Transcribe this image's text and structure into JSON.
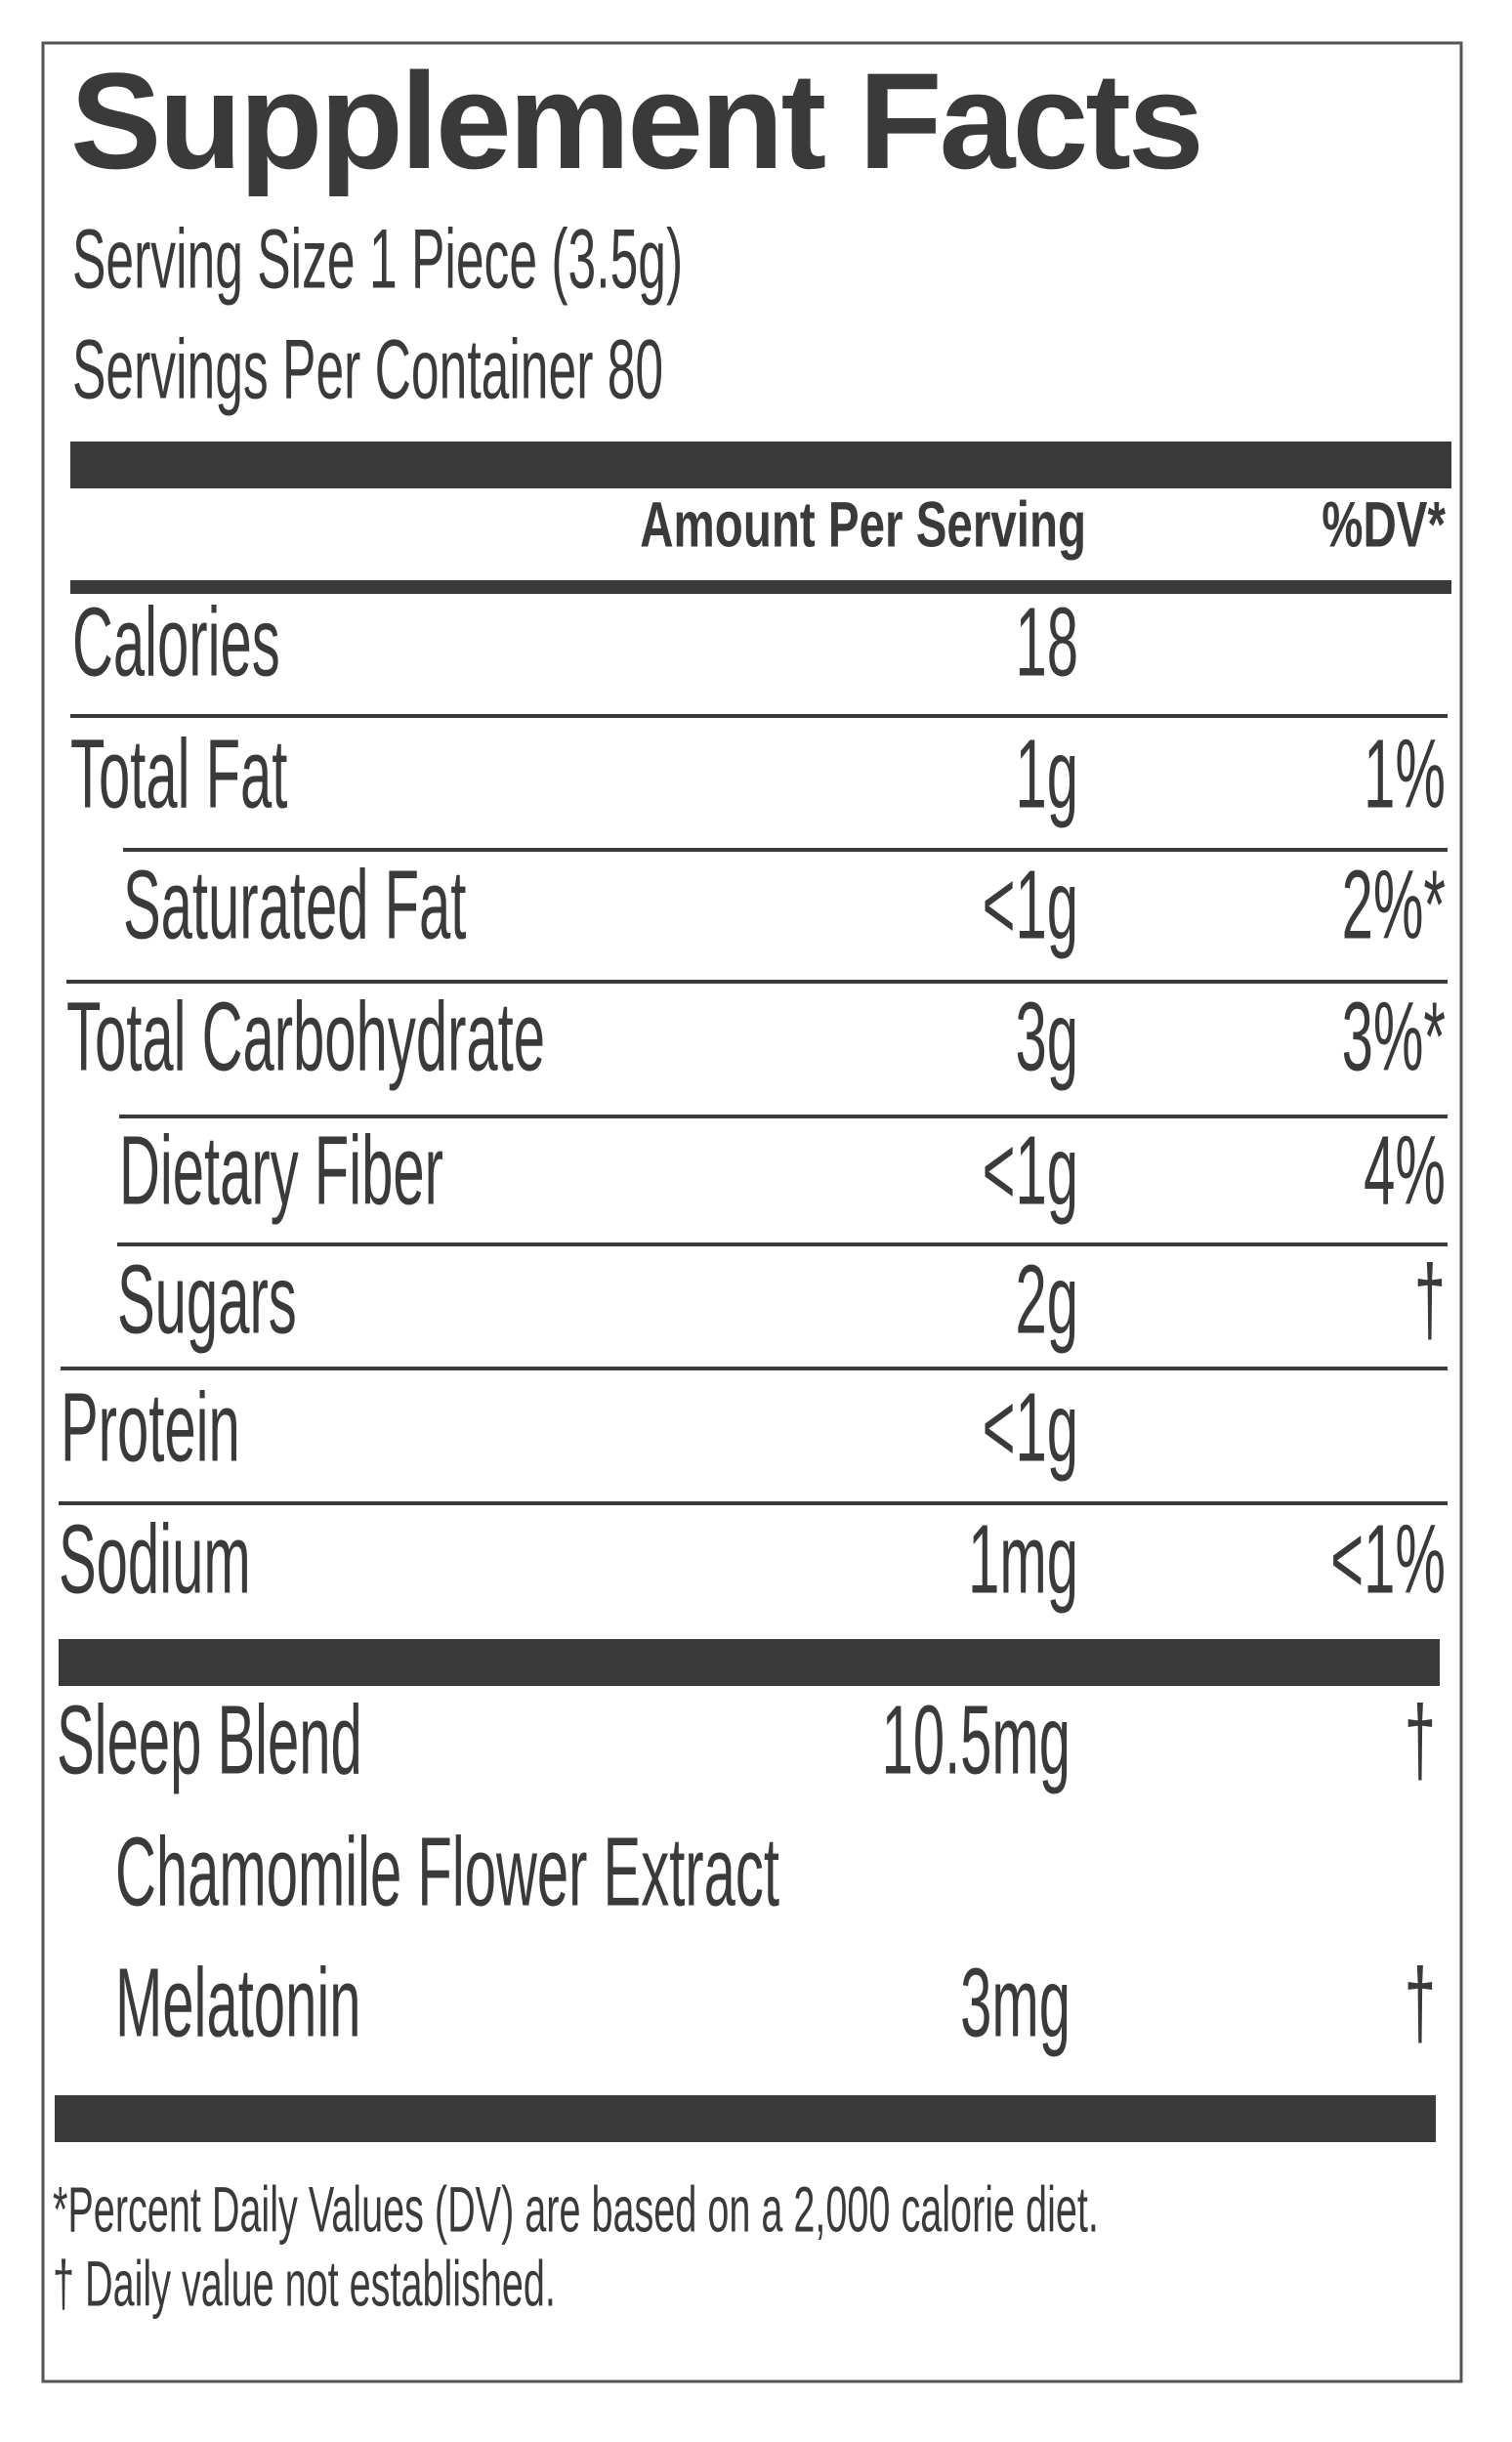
{
  "title": "Supplement Facts",
  "serving_size": "Serving Size 1 Piece (3.5g)",
  "servings_per_container": "Servings Per Container 80",
  "header": {
    "amount": "Amount Per Serving",
    "dv": "%DV*"
  },
  "rows": [
    {
      "name": "Calories",
      "amount": "18"
    },
    {
      "name": "Total Fat",
      "amount": "1g",
      "dv": "1%"
    },
    {
      "name": "Saturated Fat",
      "amount": "<1g",
      "dv": "2%*"
    },
    {
      "name": "Total Carbohydrate",
      "amount": "3g",
      "dv": "3%*"
    },
    {
      "name": "Dietary Fiber",
      "amount": "<1g",
      "dv": "4%"
    },
    {
      "name": "Sugars",
      "amount": "2g",
      "dv": "†"
    },
    {
      "name": "Protein",
      "amount": "<1g"
    },
    {
      "name": "Sodium",
      "amount": "1mg",
      "dv": "<1%"
    }
  ],
  "blend": [
    {
      "name": "Sleep Blend",
      "amount": "10.5mg",
      "dv": "†"
    },
    {
      "name": "Chamomile Flower Extract"
    },
    {
      "name": "Melatonin",
      "amount": "3mg",
      "dv": "†"
    }
  ],
  "footnotes": [
    "*Percent Daily Values (DV) are based on a 2,000 calorie diet.",
    "† Daily value not established."
  ]
}
